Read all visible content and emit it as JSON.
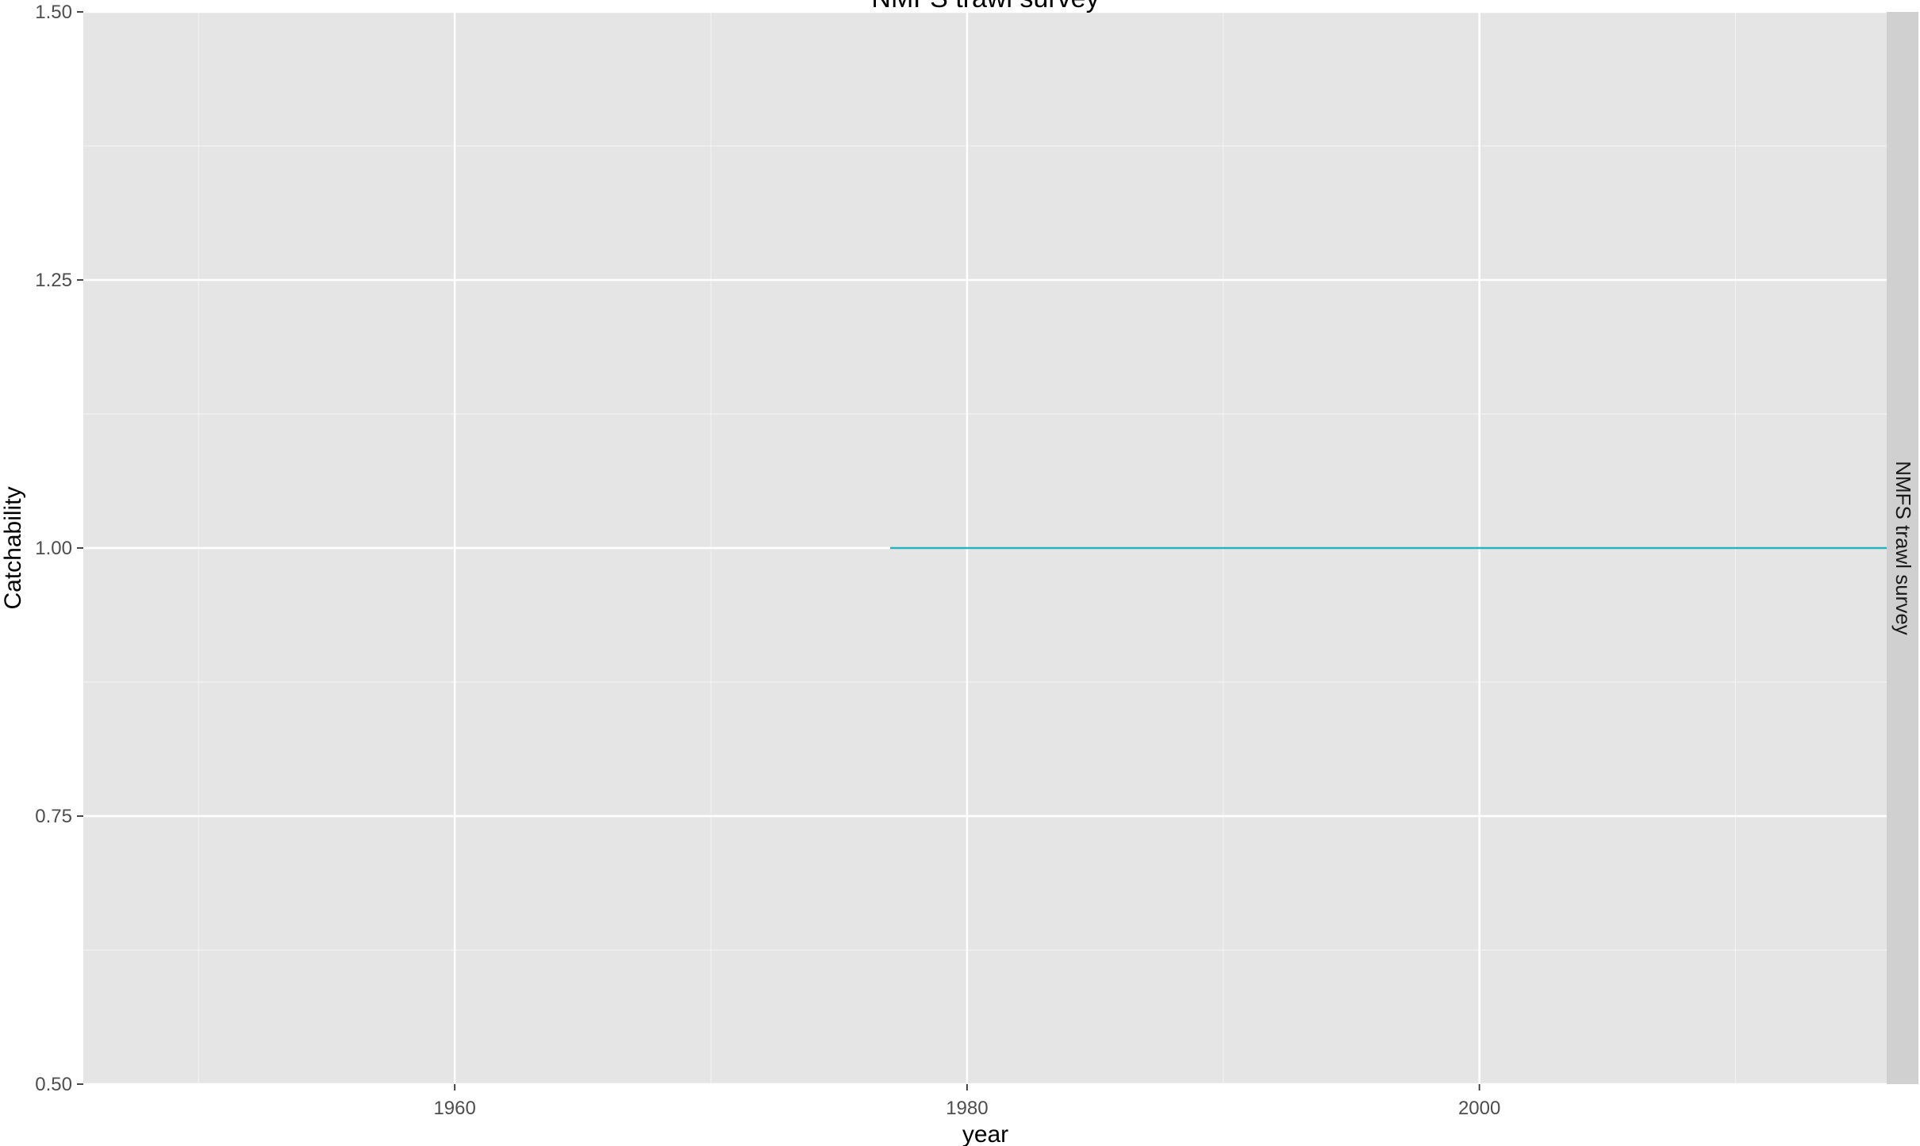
{
  "chart_data": {
    "type": "line",
    "title": "NMFS trawl survey",
    "xlabel": "year",
    "ylabel": "Catchability",
    "facet_label": "NMFS trawl survey",
    "xlim": [
      1945.5,
      2015.9
    ],
    "ylim": [
      0.5,
      1.5
    ],
    "x_ticks": [
      1960,
      1980,
      2000
    ],
    "y_ticks": [
      0.5,
      0.75,
      1.0,
      1.25,
      1.5
    ],
    "x_tick_labels": [
      "1960",
      "1980",
      "2000"
    ],
    "y_tick_labels": [
      "0.50",
      "0.75",
      "1.00",
      "1.25",
      "1.50"
    ],
    "grid": true,
    "series": [
      {
        "color": "#26b3bd",
        "x": [
          1977,
          2016
        ],
        "y": [
          1.0,
          1.0
        ]
      }
    ]
  },
  "colors": {
    "panel_background": "#e5e5e5",
    "grid_major": "#ffffff",
    "grid_minor": "#f2f2f2",
    "strip_background": "#d0d0d0"
  }
}
